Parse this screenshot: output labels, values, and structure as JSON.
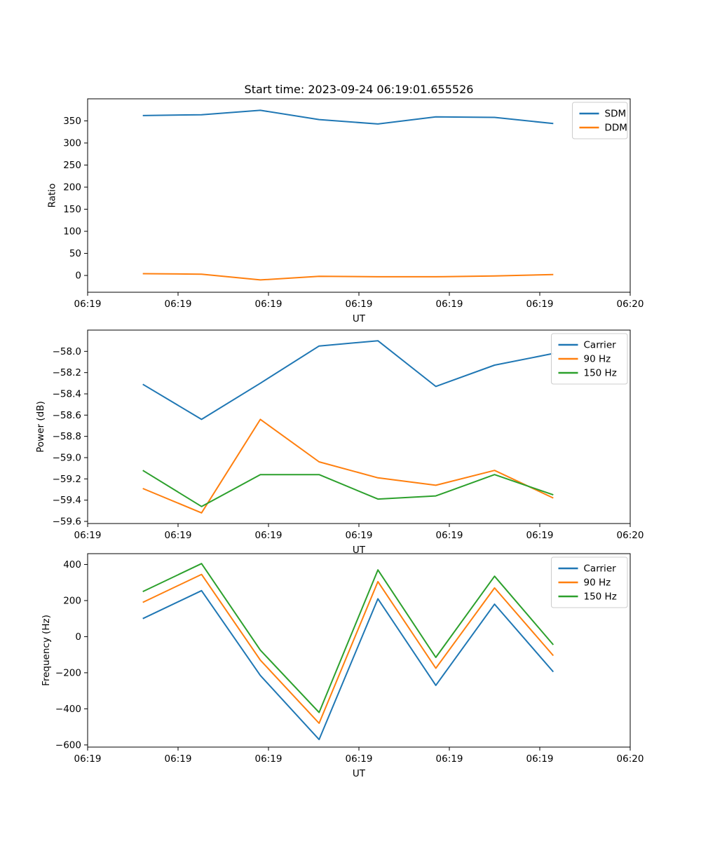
{
  "figure": {
    "title": "Start time: 2023-09-24 06:19:01.655526",
    "background": "#ffffff",
    "text_color": "#000000",
    "spine_color": "#000000"
  },
  "palette": {
    "blue": "#1f77b4",
    "orange": "#ff7f0e",
    "green": "#2ca02c"
  },
  "chart_data": [
    {
      "type": "line",
      "title": "Start time: 2023-09-24 06:19:01.655526",
      "xlabel": "UT",
      "ylabel": "Ratio",
      "xlim": [
        0,
        60
      ],
      "ylim": [
        -38,
        400
      ],
      "grid": false,
      "legend_position": "top-right",
      "x_ticks": [
        {
          "v": 0,
          "label": "06:19"
        },
        {
          "v": 10,
          "label": "06:19"
        },
        {
          "v": 20,
          "label": "06:19"
        },
        {
          "v": 30,
          "label": "06:19"
        },
        {
          "v": 40,
          "label": "06:19"
        },
        {
          "v": 50,
          "label": "06:19"
        },
        {
          "v": 60,
          "label": "06:20"
        }
      ],
      "y_ticks": [
        {
          "v": 0,
          "label": "0"
        },
        {
          "v": 50,
          "label": "50"
        },
        {
          "v": 100,
          "label": "100"
        },
        {
          "v": 150,
          "label": "150"
        },
        {
          "v": 200,
          "label": "200"
        },
        {
          "v": 250,
          "label": "250"
        },
        {
          "v": 300,
          "label": "300"
        },
        {
          "v": 350,
          "label": "350"
        }
      ],
      "x_seconds": [
        6.1,
        12.6,
        19.1,
        25.6,
        32.1,
        38.5,
        45.0,
        51.5
      ],
      "series": [
        {
          "name": "SDM",
          "color": "#1f77b4",
          "values": [
            362,
            364,
            374,
            353,
            343,
            359,
            358,
            344
          ]
        },
        {
          "name": "DDM",
          "color": "#ff7f0e",
          "values": [
            4,
            3,
            -10,
            -2,
            -3,
            -3,
            -1,
            2
          ]
        }
      ]
    },
    {
      "type": "line",
      "title": "",
      "xlabel": "UT",
      "ylabel": "Power (dB)",
      "xlim": [
        0,
        60
      ],
      "ylim": [
        -59.62,
        -57.8
      ],
      "grid": false,
      "legend_position": "top-right",
      "x_ticks": [
        {
          "v": 0,
          "label": "06:19"
        },
        {
          "v": 10,
          "label": "06:19"
        },
        {
          "v": 20,
          "label": "06:19"
        },
        {
          "v": 30,
          "label": "06:19"
        },
        {
          "v": 40,
          "label": "06:19"
        },
        {
          "v": 50,
          "label": "06:19"
        },
        {
          "v": 60,
          "label": "06:20"
        }
      ],
      "y_ticks": [
        {
          "v": -59.6,
          "label": "−59.6"
        },
        {
          "v": -59.4,
          "label": "−59.4"
        },
        {
          "v": -59.2,
          "label": "−59.2"
        },
        {
          "v": -59.0,
          "label": "−59.0"
        },
        {
          "v": -58.8,
          "label": "−58.8"
        },
        {
          "v": -58.6,
          "label": "−58.6"
        },
        {
          "v": -58.4,
          "label": "−58.4"
        },
        {
          "v": -58.2,
          "label": "−58.2"
        },
        {
          "v": -58.0,
          "label": "−58.0"
        }
      ],
      "x_seconds": [
        6.1,
        12.6,
        19.1,
        25.6,
        32.1,
        38.5,
        45.0,
        51.5
      ],
      "series": [
        {
          "name": "Carrier",
          "color": "#1f77b4",
          "values": [
            -58.31,
            -58.64,
            -58.3,
            -57.95,
            -57.9,
            -58.33,
            -58.13,
            -58.02
          ]
        },
        {
          "name": "90 Hz",
          "color": "#ff7f0e",
          "values": [
            -59.29,
            -59.52,
            -58.64,
            -59.04,
            -59.19,
            -59.26,
            -59.12,
            -59.38
          ]
        },
        {
          "name": "150 Hz",
          "color": "#2ca02c",
          "values": [
            -59.12,
            -59.46,
            -59.16,
            -59.16,
            -59.39,
            -59.36,
            -59.16,
            -59.35
          ]
        }
      ]
    },
    {
      "type": "line",
      "title": "",
      "xlabel": "UT",
      "ylabel": "Frequency (Hz)",
      "xlim": [
        0,
        60
      ],
      "ylim": [
        -612,
        460
      ],
      "grid": false,
      "legend_position": "top-right",
      "x_ticks": [
        {
          "v": 0,
          "label": "06:19"
        },
        {
          "v": 10,
          "label": "06:19"
        },
        {
          "v": 20,
          "label": "06:19"
        },
        {
          "v": 30,
          "label": "06:19"
        },
        {
          "v": 40,
          "label": "06:19"
        },
        {
          "v": 50,
          "label": "06:19"
        },
        {
          "v": 60,
          "label": "06:20"
        }
      ],
      "y_ticks": [
        {
          "v": -600,
          "label": "−600"
        },
        {
          "v": -400,
          "label": "−400"
        },
        {
          "v": -200,
          "label": "−200"
        },
        {
          "v": 0,
          "label": "0"
        },
        {
          "v": 200,
          "label": "200"
        },
        {
          "v": 400,
          "label": "400"
        }
      ],
      "x_seconds": [
        6.1,
        12.6,
        19.1,
        25.6,
        32.1,
        38.5,
        45.0,
        51.5
      ],
      "series": [
        {
          "name": "Carrier",
          "color": "#1f77b4",
          "values": [
            100,
            255,
            -215,
            -570,
            210,
            -270,
            180,
            -195
          ]
        },
        {
          "name": "90 Hz",
          "color": "#ff7f0e",
          "values": [
            190,
            345,
            -130,
            -480,
            305,
            -175,
            270,
            -105
          ]
        },
        {
          "name": "150 Hz",
          "color": "#2ca02c",
          "values": [
            250,
            405,
            -75,
            -420,
            370,
            -115,
            335,
            -45
          ]
        }
      ]
    }
  ]
}
